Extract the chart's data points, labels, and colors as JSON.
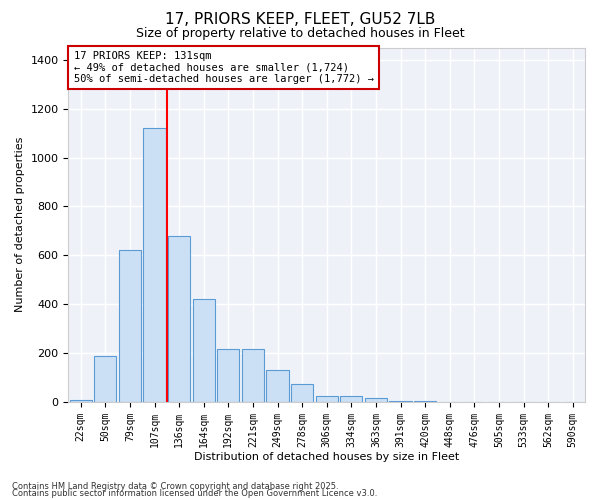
{
  "title": "17, PRIORS KEEP, FLEET, GU52 7LB",
  "subtitle": "Size of property relative to detached houses in Fleet",
  "xlabel": "Distribution of detached houses by size in Fleet",
  "ylabel": "Number of detached properties",
  "bar_color": "#cce0f5",
  "bar_edge_color": "#5b9bd5",
  "background_color": "#eef2f8",
  "grid_color": "#ffffff",
  "categories": [
    "22sqm",
    "50sqm",
    "79sqm",
    "107sqm",
    "136sqm",
    "164sqm",
    "192sqm",
    "221sqm",
    "249sqm",
    "278sqm",
    "306sqm",
    "334sqm",
    "363sqm",
    "391sqm",
    "420sqm",
    "448sqm",
    "476sqm",
    "505sqm",
    "533sqm",
    "562sqm",
    "590sqm"
  ],
  "values": [
    10,
    190,
    620,
    1120,
    680,
    420,
    215,
    215,
    130,
    75,
    25,
    25,
    15,
    5,
    5,
    0,
    0,
    0,
    0,
    0,
    0
  ],
  "red_line_x": 3.5,
  "annotation_text": "17 PRIORS KEEP: 131sqm\n← 49% of detached houses are smaller (1,724)\n50% of semi-detached houses are larger (1,772) →",
  "annotation_box_color": "#ffffff",
  "annotation_box_edge_color": "#cc0000",
  "ylim": [
    0,
    1450
  ],
  "yticks": [
    0,
    200,
    400,
    600,
    800,
    1000,
    1200,
    1400
  ],
  "footnote1": "Contains HM Land Registry data © Crown copyright and database right 2025.",
  "footnote2": "Contains public sector information licensed under the Open Government Licence v3.0."
}
